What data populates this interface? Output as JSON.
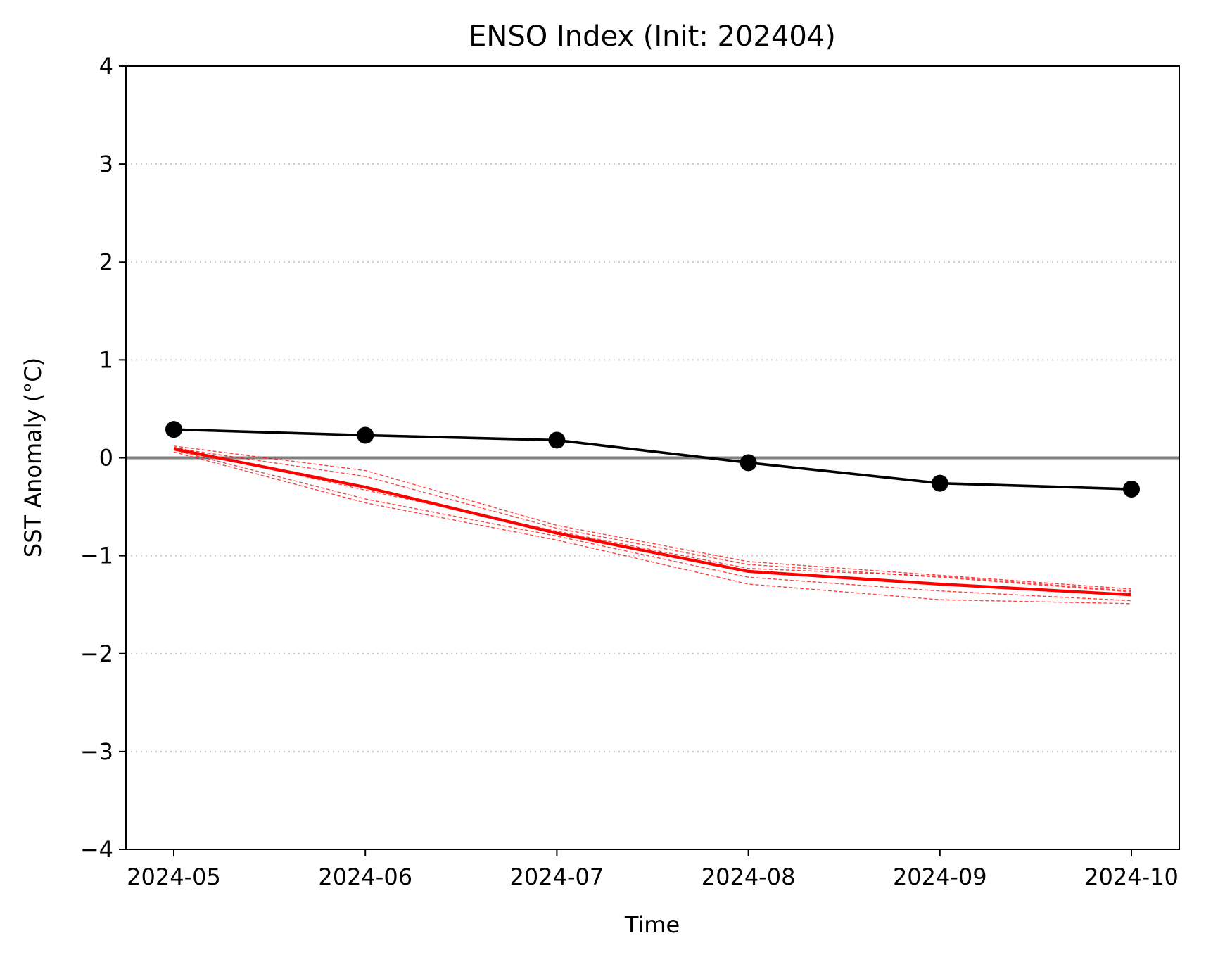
{
  "chart_data": {
    "type": "line",
    "title": "ENSO Index (Init: 202404)",
    "xlabel": "Time",
    "ylabel": "SST Anomaly (°C)",
    "categories": [
      "2024-05",
      "2024-06",
      "2024-07",
      "2024-08",
      "2024-09",
      "2024-10"
    ],
    "ylim": [
      -4,
      4
    ],
    "yticks": [
      4,
      3,
      2,
      1,
      0,
      -1,
      -2,
      -3,
      -4
    ],
    "ytick_labels": [
      "4",
      "3",
      "2",
      "1",
      "0",
      "−1",
      "−2",
      "−3",
      "−4"
    ],
    "grid": "horizontal dotted",
    "reference_line": {
      "y": 0,
      "color": "#808080"
    },
    "series": [
      {
        "role": "observed",
        "color": "#000000",
        "markers": true,
        "values": [
          0.29,
          0.23,
          0.18,
          -0.05,
          -0.26,
          -0.32
        ]
      },
      {
        "role": "ensemble-mean",
        "color": "#ff0000",
        "values": [
          0.09,
          -0.3,
          -0.77,
          -1.16,
          -1.29,
          -1.4
        ]
      },
      {
        "role": "ensemble-member",
        "color": "#ff0000",
        "dashed": true,
        "values": [
          0.12,
          -0.13,
          -0.69,
          -1.06,
          -1.2,
          -1.34
        ]
      },
      {
        "role": "ensemble-member",
        "color": "#ff0000",
        "dashed": true,
        "values": [
          0.1,
          -0.19,
          -0.72,
          -1.09,
          -1.22,
          -1.37
        ]
      },
      {
        "role": "ensemble-member",
        "color": "#ff0000",
        "dashed": true,
        "values": [
          0.11,
          -0.33,
          -0.75,
          -1.13,
          -1.21,
          -1.36
        ]
      },
      {
        "role": "ensemble-member",
        "color": "#ff0000",
        "dashed": true,
        "values": [
          0.08,
          -0.42,
          -0.8,
          -1.22,
          -1.36,
          -1.46
        ]
      },
      {
        "role": "ensemble-member",
        "color": "#ff0000",
        "dashed": true,
        "values": [
          0.06,
          -0.46,
          -0.84,
          -1.29,
          -1.45,
          -1.49
        ]
      }
    ]
  }
}
